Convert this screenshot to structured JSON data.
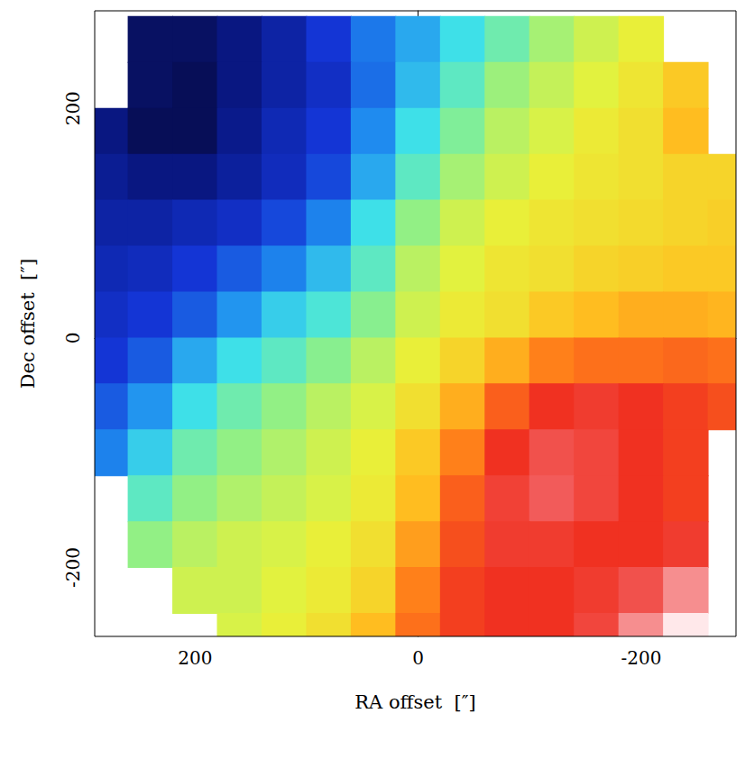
{
  "chart_data": {
    "type": "heatmap",
    "xlabel": "RA offset  [″]",
    "ylabel": "Dec offset  [″]",
    "xlim": [
      290,
      -285
    ],
    "ylim": [
      -260,
      285
    ],
    "xticks": [
      200,
      0,
      -200
    ],
    "yticks": [
      -200,
      0,
      200
    ],
    "tick_labels": true,
    "color_range": [
      0,
      100
    ],
    "x": [
      280,
      240,
      200,
      160,
      120,
      80,
      40,
      0,
      -40,
      -80,
      -120,
      -160,
      -200,
      -240,
      -280
    ],
    "y": [
      260,
      220,
      180,
      140,
      100,
      60,
      20,
      -20,
      -60,
      -100,
      -140,
      -180,
      -220,
      -260
    ],
    "values": [
      [
        null,
        5,
        5,
        8,
        12,
        18,
        25,
        30,
        36,
        42,
        48,
        52,
        55,
        null,
        null
      ],
      [
        null,
        5,
        4,
        8,
        12,
        16,
        24,
        32,
        40,
        47,
        51,
        54,
        57,
        62,
        null
      ],
      [
        8,
        4,
        4,
        9,
        14,
        18,
        27,
        36,
        44,
        50,
        53,
        56,
        58,
        64,
        null
      ],
      [
        10,
        8,
        8,
        11,
        15,
        20,
        30,
        40,
        48,
        52,
        55,
        57,
        58,
        60,
        60
      ],
      [
        12,
        12,
        14,
        16,
        20,
        26,
        36,
        46,
        52,
        55,
        57,
        58,
        59,
        60,
        61
      ],
      [
        14,
        15,
        18,
        22,
        26,
        32,
        40,
        50,
        54,
        57,
        58,
        60,
        61,
        62,
        62
      ],
      [
        16,
        18,
        22,
        28,
        34,
        38,
        45,
        52,
        56,
        58,
        62,
        64,
        66,
        66,
        65
      ],
      [
        18,
        22,
        30,
        36,
        40,
        45,
        50,
        55,
        60,
        66,
        72,
        74,
        74,
        75,
        74
      ],
      [
        22,
        28,
        36,
        42,
        46,
        50,
        53,
        58,
        66,
        76,
        82,
        84,
        82,
        80,
        78
      ],
      [
        26,
        34,
        42,
        46,
        49,
        52,
        55,
        62,
        72,
        82,
        88,
        86,
        82,
        80,
        null
      ],
      [
        null,
        40,
        46,
        49,
        51,
        53,
        56,
        64,
        76,
        85,
        90,
        86,
        82,
        80,
        null
      ],
      [
        null,
        46,
        50,
        52,
        53,
        55,
        58,
        68,
        78,
        84,
        84,
        82,
        82,
        84,
        null
      ],
      [
        null,
        null,
        52,
        52,
        54,
        56,
        60,
        72,
        80,
        82,
        82,
        84,
        88,
        94,
        null
      ],
      [
        null,
        null,
        null,
        53,
        55,
        58,
        64,
        74,
        80,
        82,
        82,
        86,
        94,
        100,
        null
      ]
    ]
  }
}
